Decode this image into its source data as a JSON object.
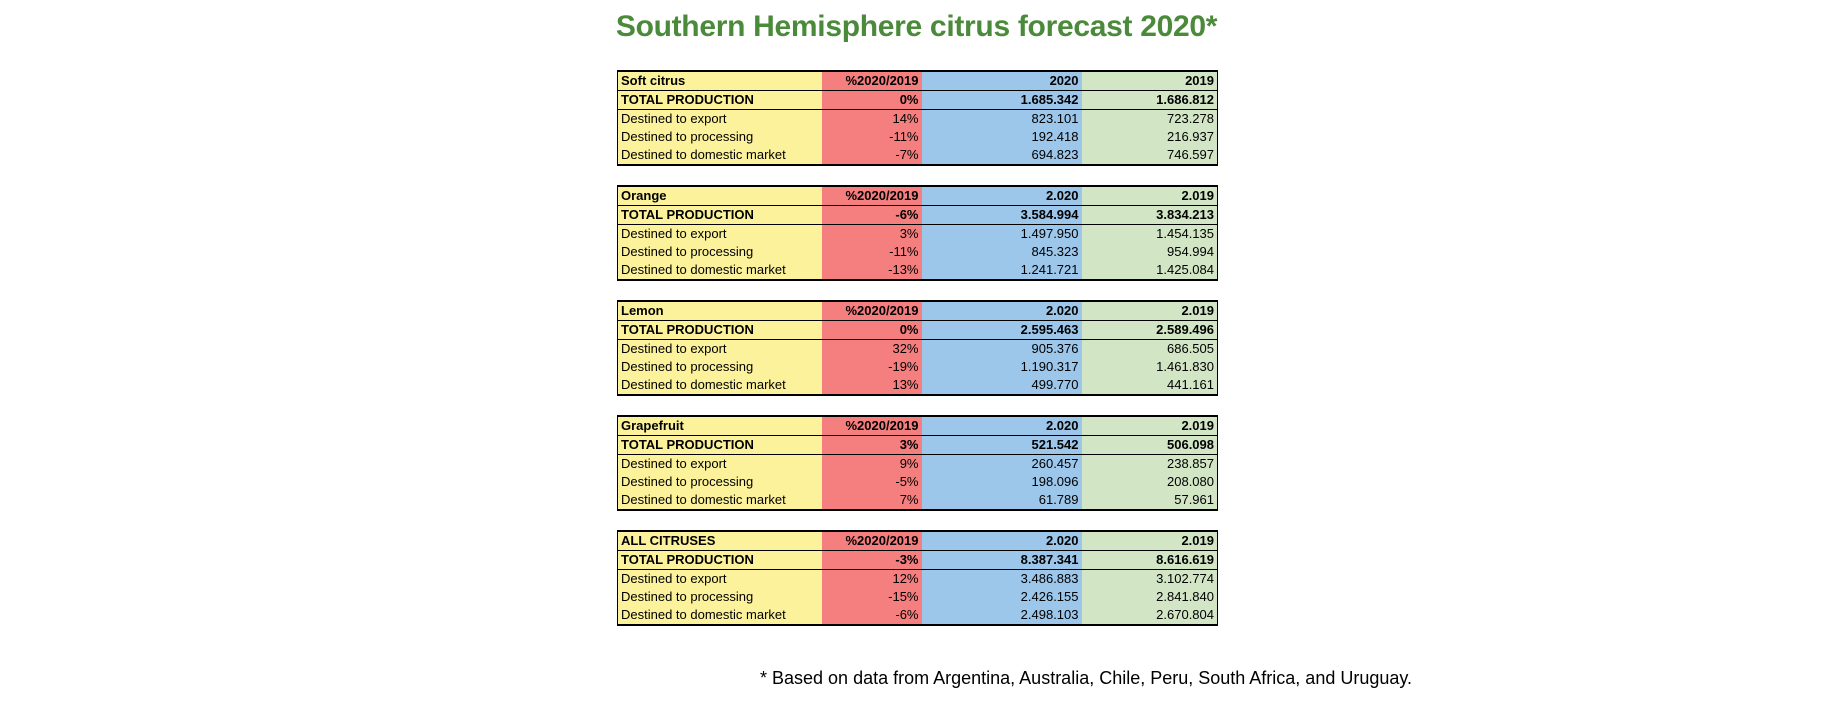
{
  "title": "Southern Hemisphere citrus forecast 2020*",
  "footnote": "* Based on data from Argentina, Australia, Chile, Peru, South Africa, and Uruguay.",
  "colors": {
    "title": "#4a8a3a",
    "label_column": "#fbf29b",
    "pct_column": "#f57f7e",
    "year1_column": "#9cc6ea",
    "year2_column": "#d2e6c6"
  },
  "tables": [
    {
      "header": {
        "label": "Soft citrus",
        "pct": "%2020/2019",
        "y1": "2020",
        "y2": "2019"
      },
      "rows": [
        {
          "label": "TOTAL PRODUCTION",
          "pct": "0%",
          "y1": "1.685.342",
          "y2": "1.686.812"
        },
        {
          "label": "Destined to export",
          "pct": "14%",
          "y1": "823.101",
          "y2": "723.278"
        },
        {
          "label": "Destined to processing",
          "pct": "-11%",
          "y1": "192.418",
          "y2": "216.937"
        },
        {
          "label": "Destined to domestic market",
          "pct": "-7%",
          "y1": "694.823",
          "y2": "746.597"
        }
      ]
    },
    {
      "header": {
        "label": "Orange",
        "pct": "%2020/2019",
        "y1": "2.020",
        "y2": "2.019"
      },
      "rows": [
        {
          "label": "TOTAL PRODUCTION",
          "pct": "-6%",
          "y1": "3.584.994",
          "y2": "3.834.213"
        },
        {
          "label": "Destined to export",
          "pct": "3%",
          "y1": "1.497.950",
          "y2": "1.454.135"
        },
        {
          "label": "Destined to processing",
          "pct": "-11%",
          "y1": "845.323",
          "y2": "954.994"
        },
        {
          "label": "Destined to domestic market",
          "pct": "-13%",
          "y1": "1.241.721",
          "y2": "1.425.084"
        }
      ]
    },
    {
      "header": {
        "label": "Lemon",
        "pct": "%2020/2019",
        "y1": "2.020",
        "y2": "2.019"
      },
      "rows": [
        {
          "label": "TOTAL PRODUCTION",
          "pct": "0%",
          "y1": "2.595.463",
          "y2": "2.589.496"
        },
        {
          "label": "Destined to export",
          "pct": "32%",
          "y1": "905.376",
          "y2": "686.505"
        },
        {
          "label": "Destined to processing",
          "pct": "-19%",
          "y1": "1.190.317",
          "y2": "1.461.830"
        },
        {
          "label": "Destined to domestic market",
          "pct": "13%",
          "y1": "499.770",
          "y2": "441.161"
        }
      ]
    },
    {
      "header": {
        "label": "Grapefruit",
        "pct": "%2020/2019",
        "y1": "2.020",
        "y2": "2.019"
      },
      "rows": [
        {
          "label": "TOTAL PRODUCTION",
          "pct": "3%",
          "y1": "521.542",
          "y2": "506.098"
        },
        {
          "label": "Destined to export",
          "pct": "9%",
          "y1": "260.457",
          "y2": "238.857"
        },
        {
          "label": "Destined to processing",
          "pct": "-5%",
          "y1": "198.096",
          "y2": "208.080"
        },
        {
          "label": "Destined to domestic market",
          "pct": "7%",
          "y1": "61.789",
          "y2": "57.961"
        }
      ]
    },
    {
      "header": {
        "label": "ALL CITRUSES",
        "pct": "%2020/2019",
        "y1": "2.020",
        "y2": "2.019"
      },
      "rows": [
        {
          "label": "TOTAL PRODUCTION",
          "pct": "-3%",
          "y1": "8.387.341",
          "y2": "8.616.619"
        },
        {
          "label": "Destined to export",
          "pct": "12%",
          "y1": "3.486.883",
          "y2": "3.102.774"
        },
        {
          "label": "Destined to processing",
          "pct": "-15%",
          "y1": "2.426.155",
          "y2": "2.841.840"
        },
        {
          "label": "Destined to domestic market",
          "pct": "-6%",
          "y1": "2.498.103",
          "y2": "2.670.804"
        }
      ]
    }
  ]
}
